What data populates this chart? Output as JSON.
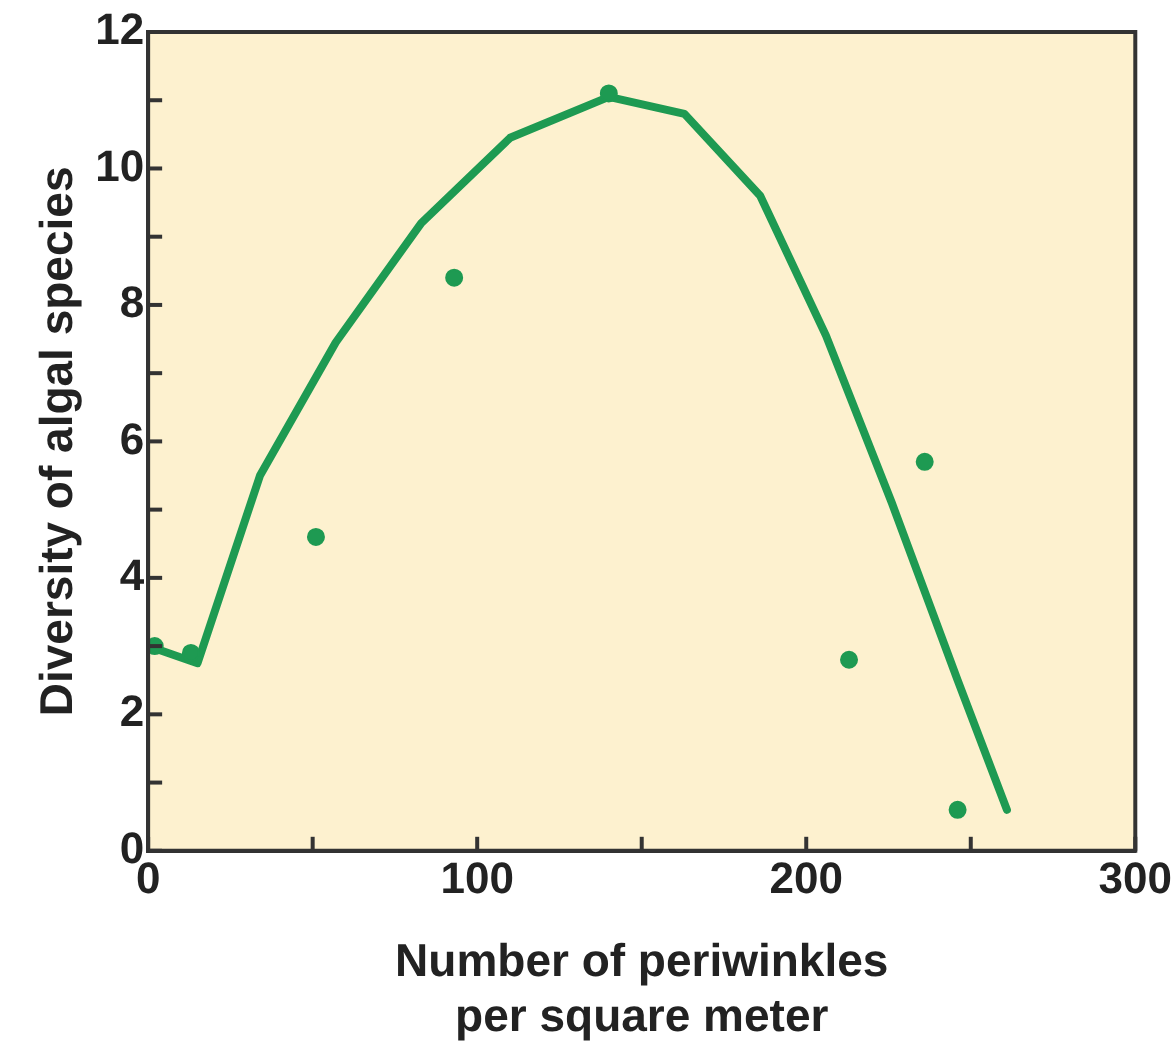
{
  "chart_data": {
    "type": "scatter",
    "xlabel": [
      "Number of periwinkles",
      "per square meter"
    ],
    "ylabel": "Diversity of algal species",
    "xlim": [
      0,
      300
    ],
    "xticks": [
      0,
      {
        "value": 50,
        "label": null
      },
      100,
      {
        "value": 150,
        "label": null
      },
      200,
      {
        "value": 250,
        "label": null
      },
      300
    ],
    "ylim": [
      0,
      12
    ],
    "yticks": [
      0,
      {
        "value": 1,
        "label": null
      },
      2,
      {
        "value": 3,
        "label": null
      },
      4,
      {
        "value": 5,
        "label": null
      },
      6,
      {
        "value": 7,
        "label": null
      },
      8,
      {
        "value": 9,
        "label": null
      },
      10,
      {
        "value": 11,
        "label": null
      },
      12
    ],
    "grid": false,
    "legend": false,
    "marker": "circle",
    "series": [
      {
        "color": "#1e9a52",
        "x": [
          2,
          13,
          51,
          93,
          140,
          213,
          236,
          246
        ],
        "values": [
          3,
          2.9,
          4.6,
          8.4,
          11.1,
          2.8,
          5.7,
          0.6
        ]
      },
      {
        "type": "line",
        "color": "#1e9a52",
        "marker": "none",
        "x": [
          0,
          15,
          34,
          57,
          83,
          110,
          140,
          163,
          186,
          206,
          226,
          246,
          261
        ],
        "values": [
          3,
          2.75,
          5.5,
          7.45,
          9.2,
          10.45,
          11.05,
          10.8,
          9.6,
          7.55,
          5.1,
          2.5,
          0.6
        ]
      }
    ]
  }
}
